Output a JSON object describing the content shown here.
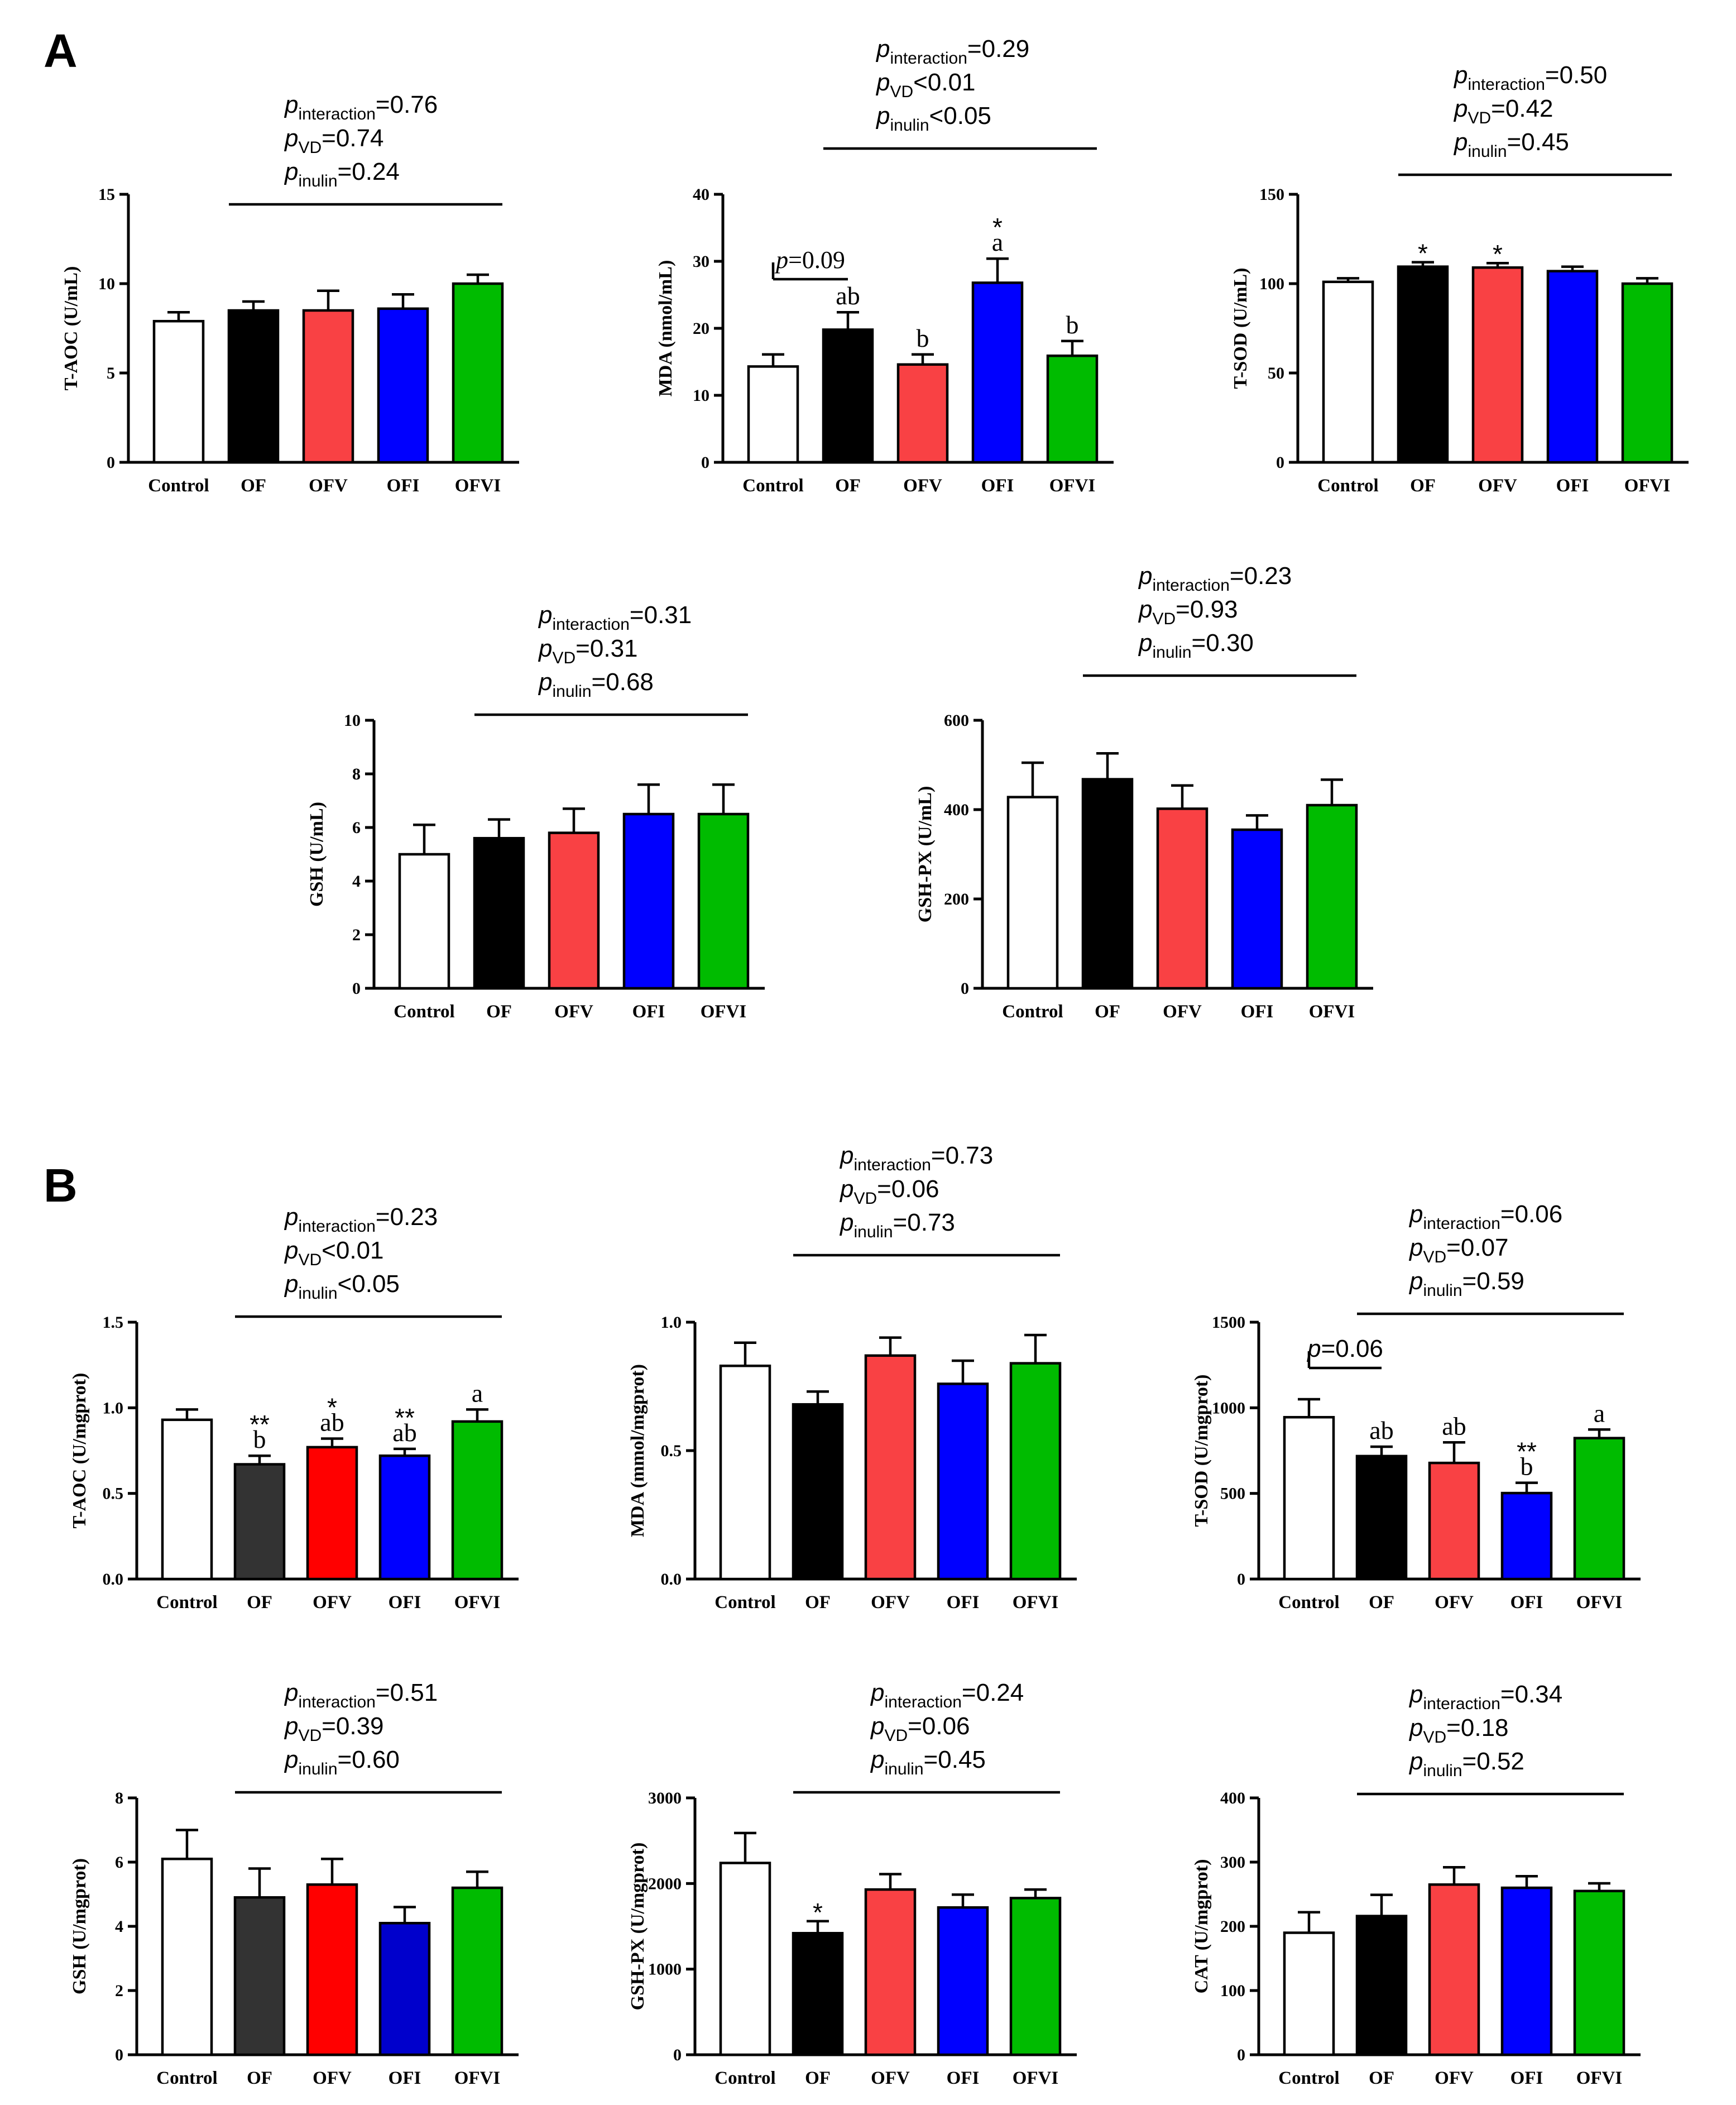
{
  "figure": {
    "panels": [
      {
        "key": "A",
        "label": "A"
      },
      {
        "key": "B",
        "label": "B"
      }
    ]
  },
  "colors": {
    "Control": "#ffffff",
    "OF": "#000000",
    "OF_dark": "#333333",
    "OFV": "#f94144",
    "OFV_red": "#ff0000",
    "OFI": "#0000ff",
    "OFI_dark": "#0000cc",
    "OFVI": "#00bb00"
  },
  "stat_labels": {
    "p": "p",
    "interaction": "interaction",
    "vd": "VD",
    "inulin": "inulin"
  },
  "chart_data": [
    {
      "id": "A-TAOC",
      "panel": "A",
      "type": "bar",
      "categories": [
        "Control",
        "OF",
        "OFV",
        "OFI",
        "OFVI"
      ],
      "values": [
        7.9,
        8.5,
        8.5,
        8.6,
        10.0
      ],
      "errors": [
        0.5,
        0.5,
        1.1,
        0.8,
        0.5
      ],
      "ylabel": "T-AOC (U/mL)",
      "ylim": [
        0,
        15
      ],
      "yticks": [
        "0",
        "5",
        "10",
        "15"
      ],
      "ytick_values": [
        0,
        5,
        10,
        15
      ],
      "colors": [
        "#ffffff",
        "#000000",
        "#f94144",
        "#0000ff",
        "#00bb00"
      ],
      "stats": {
        "interaction": "=0.76",
        "vd": "=0.74",
        "inulin": "=0.24"
      },
      "bar_letters": [
        "",
        "",
        "",
        "",
        ""
      ],
      "bar_stars": [
        "",
        "",
        "",
        "",
        ""
      ]
    },
    {
      "id": "A-MDA",
      "panel": "A",
      "type": "bar",
      "categories": [
        "Control",
        "OF",
        "OFV",
        "OFI",
        "OFVI"
      ],
      "values": [
        14.3,
        19.8,
        14.6,
        26.8,
        15.9
      ],
      "errors": [
        1.8,
        2.6,
        1.5,
        3.6,
        2.2
      ],
      "ylabel": "MDA (nmol/mL)",
      "ylim": [
        0,
        40
      ],
      "yticks": [
        "0",
        "10",
        "20",
        "30",
        "40"
      ],
      "ytick_values": [
        0,
        10,
        20,
        30,
        40
      ],
      "colors": [
        "#ffffff",
        "#000000",
        "#f94144",
        "#0000ff",
        "#00bb00"
      ],
      "stats": {
        "interaction": "=0.29",
        "vd": "<0.01",
        "inulin": "<0.05"
      },
      "bar_letters": [
        "",
        "ab",
        "b",
        "a",
        "b"
      ],
      "bar_stars": [
        "",
        "",
        "",
        "*",
        ""
      ],
      "pair_test": {
        "text": "=0.09"
      }
    },
    {
      "id": "A-TSOD",
      "panel": "A",
      "type": "bar",
      "categories": [
        "Control",
        "OF",
        "OFV",
        "OFI",
        "OFVI"
      ],
      "values": [
        101,
        109.5,
        109,
        107,
        100
      ],
      "errors": [
        2,
        2.5,
        2.5,
        2.5,
        3
      ],
      "ylabel": "T-SOD (U/mL)",
      "ylim": [
        0,
        150
      ],
      "yticks": [
        "0",
        "50",
        "100",
        "150"
      ],
      "ytick_values": [
        0,
        50,
        100,
        150
      ],
      "colors": [
        "#ffffff",
        "#000000",
        "#f94144",
        "#0000ff",
        "#00bb00"
      ],
      "stats": {
        "interaction": "=0.50",
        "vd": "=0.42",
        "inulin": "=0.45"
      },
      "bar_letters": [
        "",
        "",
        "",
        "",
        ""
      ],
      "bar_stars": [
        "",
        "*",
        "*",
        "",
        ""
      ]
    },
    {
      "id": "A-GSH",
      "panel": "A",
      "type": "bar",
      "categories": [
        "Control",
        "OF",
        "OFV",
        "OFI",
        "OFVI"
      ],
      "values": [
        5.0,
        5.6,
        5.8,
        6.5,
        6.5
      ],
      "errors": [
        1.1,
        0.7,
        0.9,
        1.1,
        1.1
      ],
      "ylabel": "GSH (U/mL)",
      "ylim": [
        0,
        10
      ],
      "yticks": [
        "0",
        "2",
        "4",
        "6",
        "8",
        "10"
      ],
      "ytick_values": [
        0,
        2,
        4,
        6,
        8,
        10
      ],
      "colors": [
        "#ffffff",
        "#000000",
        "#f94144",
        "#0000ff",
        "#00bb00"
      ],
      "stats": {
        "interaction": "=0.31",
        "vd": "=0.31",
        "inulin": "=0.68"
      },
      "bar_letters": [
        "",
        "",
        "",
        "",
        ""
      ],
      "bar_stars": [
        "",
        "",
        "",
        "",
        ""
      ]
    },
    {
      "id": "A-GSHPX",
      "panel": "A",
      "type": "bar",
      "categories": [
        "Control",
        "OF",
        "OFV",
        "OFI",
        "OFVI"
      ],
      "values": [
        428,
        468,
        402,
        355,
        410
      ],
      "errors": [
        77,
        58,
        52,
        32,
        57
      ],
      "ylabel": "GSH-PX (U/mL)",
      "ylim": [
        0,
        600
      ],
      "yticks": [
        "0",
        "200",
        "400",
        "600"
      ],
      "ytick_values": [
        0,
        200,
        400,
        600
      ],
      "colors": [
        "#ffffff",
        "#000000",
        "#f94144",
        "#0000ff",
        "#00bb00"
      ],
      "stats": {
        "interaction": "=0.23",
        "vd": "=0.93",
        "inulin": "=0.30"
      },
      "bar_letters": [
        "",
        "",
        "",
        "",
        ""
      ],
      "bar_stars": [
        "",
        "",
        "",
        "",
        ""
      ]
    },
    {
      "id": "B-TAOC",
      "panel": "B",
      "type": "bar",
      "categories": [
        "Control",
        "OF",
        "OFV",
        "OFI",
        "OFVI"
      ],
      "values": [
        0.93,
        0.67,
        0.77,
        0.72,
        0.92
      ],
      "errors": [
        0.06,
        0.05,
        0.05,
        0.04,
        0.07
      ],
      "ylabel": "T-AOC (U/mgprot)",
      "ylim": [
        0,
        1.5
      ],
      "yticks": [
        "0.0",
        "0.5",
        "1.0",
        "1.5"
      ],
      "ytick_values": [
        0,
        0.5,
        1.0,
        1.5
      ],
      "colors": [
        "#ffffff",
        "#333333",
        "#ff0000",
        "#0000ff",
        "#00bb00"
      ],
      "stats": {
        "interaction": "=0.23",
        "vd": "<0.01",
        "inulin": "<0.05"
      },
      "bar_letters": [
        "",
        "b",
        "ab",
        "ab",
        "a"
      ],
      "bar_stars": [
        "",
        "**",
        "*",
        "**",
        ""
      ]
    },
    {
      "id": "B-MDA",
      "panel": "B",
      "type": "bar",
      "categories": [
        "Control",
        "OF",
        "OFV",
        "OFI",
        "OFVI"
      ],
      "values": [
        0.83,
        0.68,
        0.87,
        0.76,
        0.84
      ],
      "errors": [
        0.09,
        0.05,
        0.07,
        0.09,
        0.11
      ],
      "ylabel": "MDA (mmol/mgprot)",
      "ylim": [
        0,
        1.0
      ],
      "yticks": [
        "0.0",
        "0.5",
        "1.0"
      ],
      "ytick_values": [
        0,
        0.5,
        1.0
      ],
      "colors": [
        "#ffffff",
        "#000000",
        "#f94144",
        "#0000ff",
        "#00bb00"
      ],
      "stats": {
        "interaction": "=0.73",
        "vd": "=0.06",
        "inulin": "=0.73"
      },
      "bar_letters": [
        "",
        "",
        "",
        "",
        ""
      ],
      "bar_stars": [
        "",
        "",
        "",
        "",
        ""
      ]
    },
    {
      "id": "B-TSOD",
      "panel": "B",
      "type": "bar",
      "categories": [
        "Control",
        "OF",
        "OFV",
        "OFI",
        "OFVI"
      ],
      "values": [
        945,
        718,
        678,
        502,
        823
      ],
      "errors": [
        105,
        55,
        120,
        60,
        50
      ],
      "ylabel": "T-SOD (U/mgprot)",
      "ylim": [
        0,
        1500
      ],
      "yticks": [
        "0",
        "500",
        "1000",
        "1500"
      ],
      "ytick_values": [
        0,
        500,
        1000,
        1500
      ],
      "colors": [
        "#ffffff",
        "#000000",
        "#f94144",
        "#0000ff",
        "#00bb00"
      ],
      "stats": {
        "interaction": "=0.06",
        "vd": "=0.07",
        "inulin": "=0.59"
      },
      "bar_letters": [
        "",
        "ab",
        "ab",
        "b",
        "a"
      ],
      "bar_stars": [
        "",
        "",
        "",
        "**",
        ""
      ],
      "pair_test": {
        "text": "=0.06"
      }
    },
    {
      "id": "B-GSH",
      "panel": "B",
      "type": "bar",
      "categories": [
        "Control",
        "OF",
        "OFV",
        "OFI",
        "OFVI"
      ],
      "values": [
        6.1,
        4.9,
        5.3,
        4.1,
        5.2
      ],
      "errors": [
        0.9,
        0.9,
        0.8,
        0.5,
        0.5
      ],
      "ylabel": "GSH (U/mgprot)",
      "ylim": [
        0,
        8
      ],
      "yticks": [
        "0",
        "2",
        "4",
        "6",
        "8"
      ],
      "ytick_values": [
        0,
        2,
        4,
        6,
        8
      ],
      "colors": [
        "#ffffff",
        "#333333",
        "#ff0000",
        "#0000cc",
        "#00bb00"
      ],
      "stats": {
        "interaction": "=0.51",
        "vd": "=0.39",
        "inulin": "=0.60"
      },
      "bar_letters": [
        "",
        "",
        "",
        "",
        ""
      ],
      "bar_stars": [
        "",
        "",
        "",
        "",
        ""
      ]
    },
    {
      "id": "B-GSHPX",
      "panel": "B",
      "type": "bar",
      "categories": [
        "Control",
        "OF",
        "OFV",
        "OFI",
        "OFVI"
      ],
      "values": [
        2240,
        1420,
        1930,
        1720,
        1830
      ],
      "errors": [
        350,
        140,
        180,
        150,
        100
      ],
      "ylabel": "GSH-PX (U/mgprot)",
      "ylim": [
        0,
        3000
      ],
      "yticks": [
        "0",
        "1000",
        "2000",
        "3000"
      ],
      "ytick_values": [
        0,
        1000,
        2000,
        3000
      ],
      "colors": [
        "#ffffff",
        "#000000",
        "#f94144",
        "#0000ff",
        "#00bb00"
      ],
      "stats": {
        "interaction": "=0.24",
        "vd": "=0.06",
        "inulin": "=0.45"
      },
      "bar_letters": [
        "",
        "",
        "",
        "",
        ""
      ],
      "bar_stars": [
        "",
        "*",
        "",
        "",
        ""
      ]
    },
    {
      "id": "B-CAT",
      "panel": "B",
      "type": "bar",
      "categories": [
        "Control",
        "OF",
        "OFV",
        "OFI",
        "OFVI"
      ],
      "values": [
        190,
        216,
        265,
        260,
        255
      ],
      "errors": [
        32,
        33,
        27,
        18,
        12
      ],
      "ylabel": "CAT (U/mgprot)",
      "ylim": [
        0,
        400
      ],
      "yticks": [
        "0",
        "100",
        "200",
        "300",
        "400"
      ],
      "ytick_values": [
        0,
        100,
        200,
        300,
        400
      ],
      "colors": [
        "#ffffff",
        "#000000",
        "#f94144",
        "#0000ff",
        "#00bb00"
      ],
      "stats": {
        "interaction": "=0.34",
        "vd": "=0.18",
        "inulin": "=0.52"
      },
      "bar_letters": [
        "",
        "",
        "",
        "",
        ""
      ],
      "bar_stars": [
        "",
        "",
        "",
        "",
        ""
      ]
    }
  ]
}
